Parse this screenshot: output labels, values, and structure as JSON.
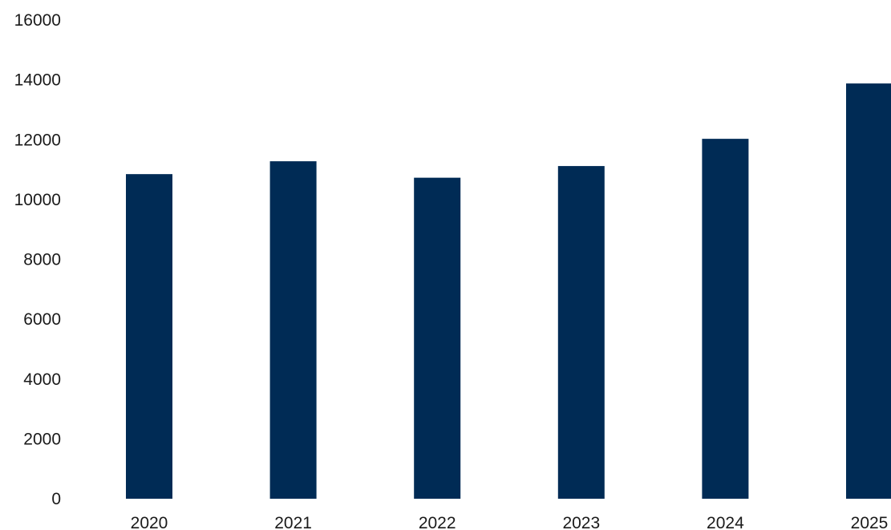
{
  "chart_data": {
    "type": "bar",
    "title": "",
    "xlabel": "",
    "ylabel": "",
    "categories": [
      "2020",
      "2021",
      "2022",
      "2023",
      "2024",
      "2025"
    ],
    "values": [
      10850,
      11280,
      10730,
      11120,
      12030,
      13880
    ],
    "ylim": [
      0,
      16000
    ],
    "yticks": [
      "0",
      "2000",
      "4000",
      "6000",
      "8000",
      "10000",
      "12000",
      "14000",
      "16000"
    ],
    "grid": false,
    "legend": "none",
    "bar_color": "#002b55"
  }
}
